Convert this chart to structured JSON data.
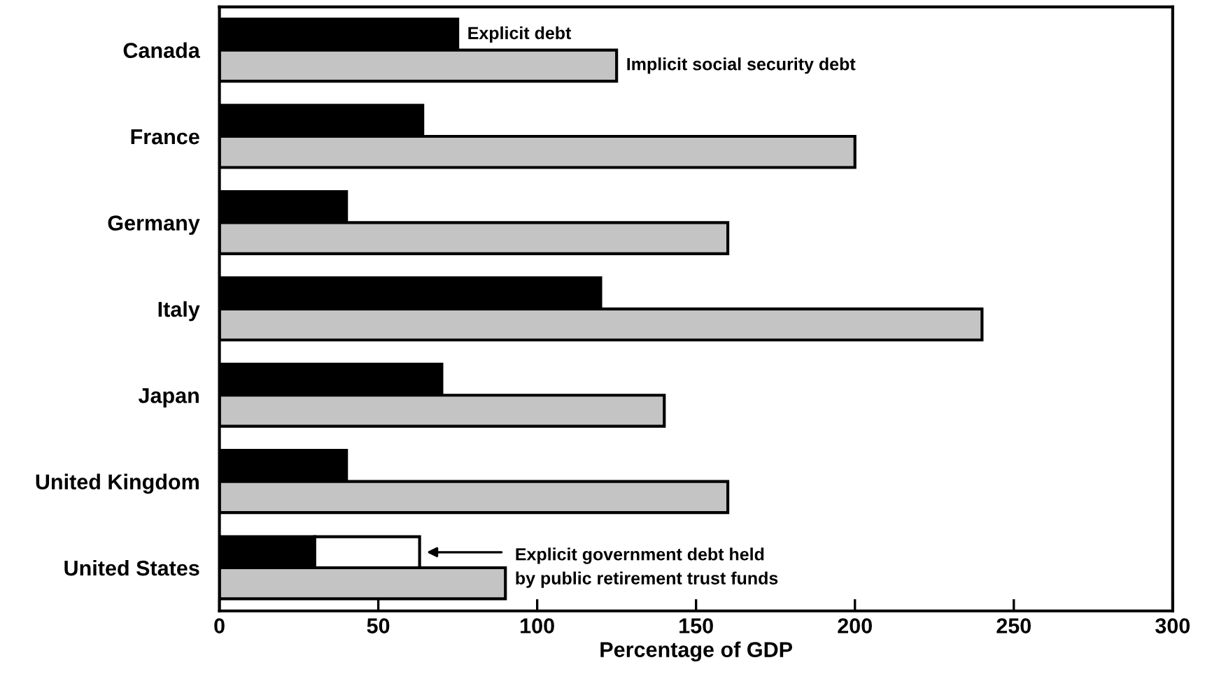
{
  "chart_data": {
    "type": "bar",
    "orientation": "horizontal",
    "xlabel": "Percentage of GDP",
    "categories": [
      "Canada",
      "France",
      "Germany",
      "Italy",
      "Japan",
      "United Kingdom",
      "United States"
    ],
    "series": [
      {
        "name": "Explicit debt",
        "color": "#000000",
        "values": [
          75,
          64,
          40,
          120,
          70,
          40,
          30
        ]
      },
      {
        "name": "Explicit government debt held\nby public retirement trust funds",
        "color": "#ffffff",
        "values": [
          null,
          null,
          null,
          null,
          null,
          null,
          33
        ],
        "base": [
          null,
          null,
          null,
          null,
          null,
          null,
          30
        ]
      },
      {
        "name": "Implicit social security debt",
        "color": "#c4c4c4",
        "values": [
          125,
          200,
          160,
          240,
          140,
          160,
          90
        ]
      }
    ],
    "xlim": [
      0,
      300
    ],
    "xticks": [
      0,
      50,
      100,
      150,
      200,
      250,
      300
    ],
    "grid": false
  }
}
